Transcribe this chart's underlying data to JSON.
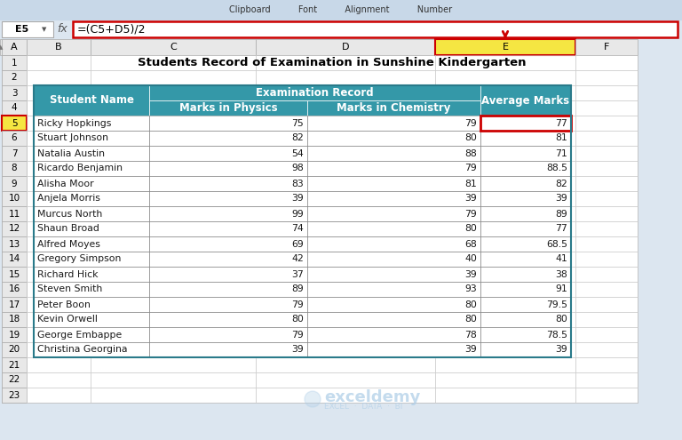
{
  "title": "Students Record of Examination in Sunshine Kindergarten",
  "formula_bar_text": "=(C5+D5)/2",
  "cell_ref": "E5",
  "students": [
    [
      "Ricky Hopkings",
      75,
      79,
      77
    ],
    [
      "Stuart Johnson",
      82,
      80,
      81
    ],
    [
      "Natalia Austin",
      54,
      88,
      71
    ],
    [
      "Ricardo Benjamin",
      98,
      79,
      88.5
    ],
    [
      "Alisha Moor",
      83,
      81,
      82
    ],
    [
      "Anjela Morris",
      39,
      39,
      39
    ],
    [
      "Murcus North",
      99,
      79,
      89
    ],
    [
      "Shaun Broad",
      74,
      80,
      77
    ],
    [
      "Alfred Moyes",
      69,
      68,
      68.5
    ],
    [
      "Gregory Simpson",
      42,
      40,
      41
    ],
    [
      "Richard Hick",
      37,
      39,
      38
    ],
    [
      "Steven Smith",
      89,
      93,
      91
    ],
    [
      "Peter Boon",
      79,
      80,
      79.5
    ],
    [
      "Kevin Orwell",
      80,
      80,
      80
    ],
    [
      "George Embappe",
      79,
      78,
      78.5
    ],
    [
      "Christina Georgina",
      39,
      39,
      39
    ]
  ],
  "teal_color": "#3498a8",
  "header_text_color": "#FFFFFF",
  "data_text_color": "#1a1a1a",
  "col_header_bg": "#e8e8e8",
  "active_col_highlight": "#f5e642",
  "red_border_color": "#cc0000",
  "watermark_color": "#b0cfe8",
  "ribbon_bg": "#c8d8e8",
  "excel_bg": "#dce6f0"
}
